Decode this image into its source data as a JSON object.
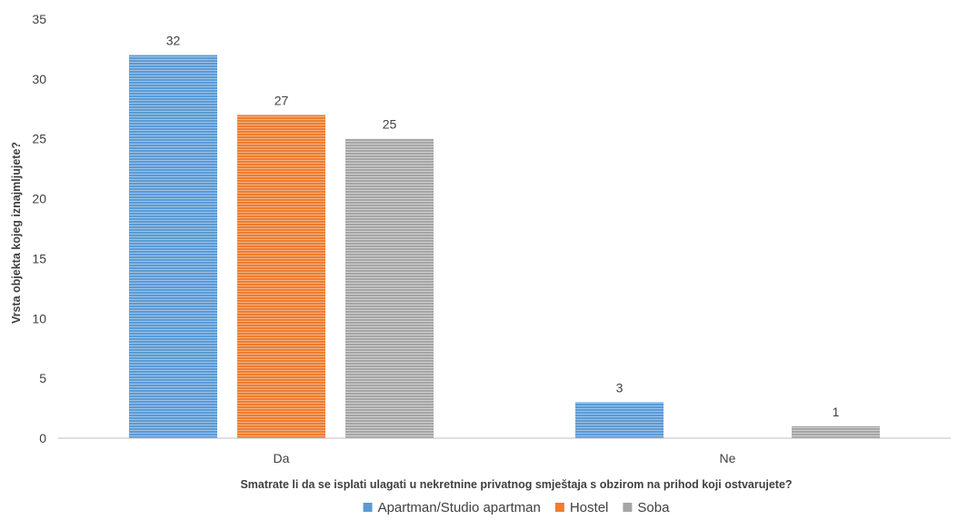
{
  "chart_data": {
    "type": "bar",
    "title": "",
    "xlabel": "Smatrate li da se isplati ulagati u nekretnine privatnog smještaja s obzirom na prihod koji ostvarujete?",
    "ylabel": "Vrsta objekta kojeg iznajmljujete?",
    "categories": [
      "Da",
      "Ne"
    ],
    "ylim": [
      0,
      35
    ],
    "yticks": [
      0,
      5,
      10,
      15,
      20,
      25,
      30,
      35
    ],
    "grid": false,
    "legend_position": "bottom",
    "series": [
      {
        "name": "Apartman/Studio apartman",
        "color": "#5b9bd5",
        "values": [
          32,
          3
        ],
        "labels": [
          "32",
          "3"
        ]
      },
      {
        "name": "Hostel",
        "color": "#ed7d31",
        "values": [
          27,
          0
        ],
        "labels": [
          "27",
          ""
        ]
      },
      {
        "name": "Soba",
        "color": "#a5a5a5",
        "values": [
          25,
          1
        ],
        "labels": [
          "25",
          "1"
        ]
      }
    ]
  }
}
